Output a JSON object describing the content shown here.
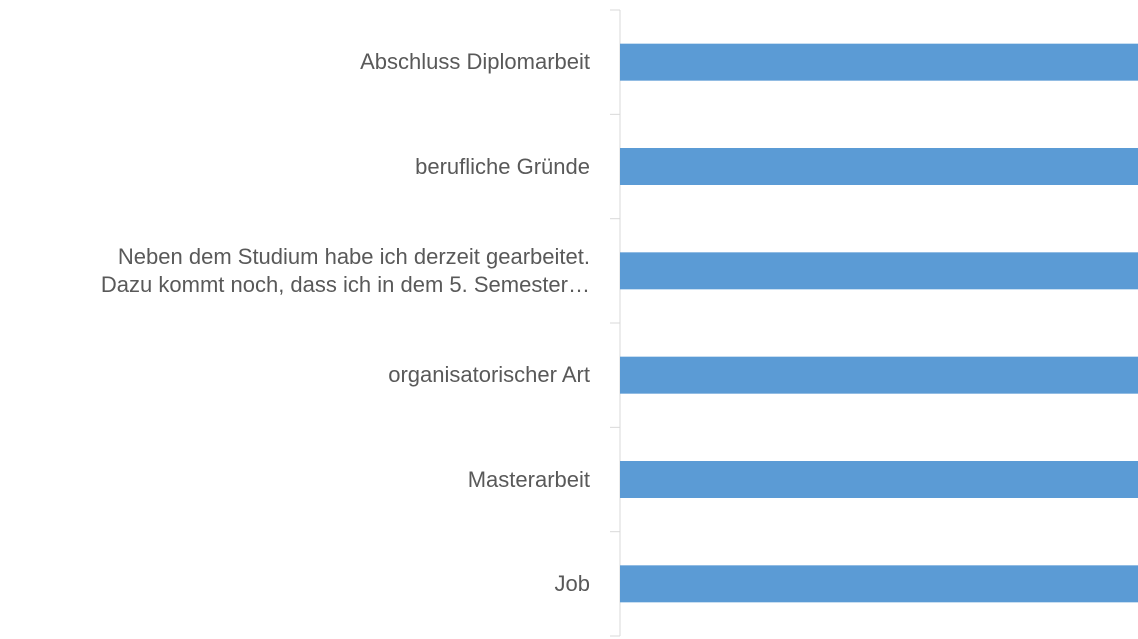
{
  "chart_data": {
    "type": "bar",
    "orientation": "horizontal",
    "categories": [
      "Abschluss Diplomarbeit",
      "berufliche Gründe",
      "Neben dem Studium habe ich derzeit gearbeitet.\nDazu kommt noch, dass ich in dem 5. Semester…",
      "organisatorischer Art",
      "Masterarbeit",
      "Job"
    ],
    "values": [
      1,
      1,
      1,
      1,
      1,
      1
    ],
    "color": "#5b9bd5",
    "xlim": [
      0,
      1
    ]
  }
}
